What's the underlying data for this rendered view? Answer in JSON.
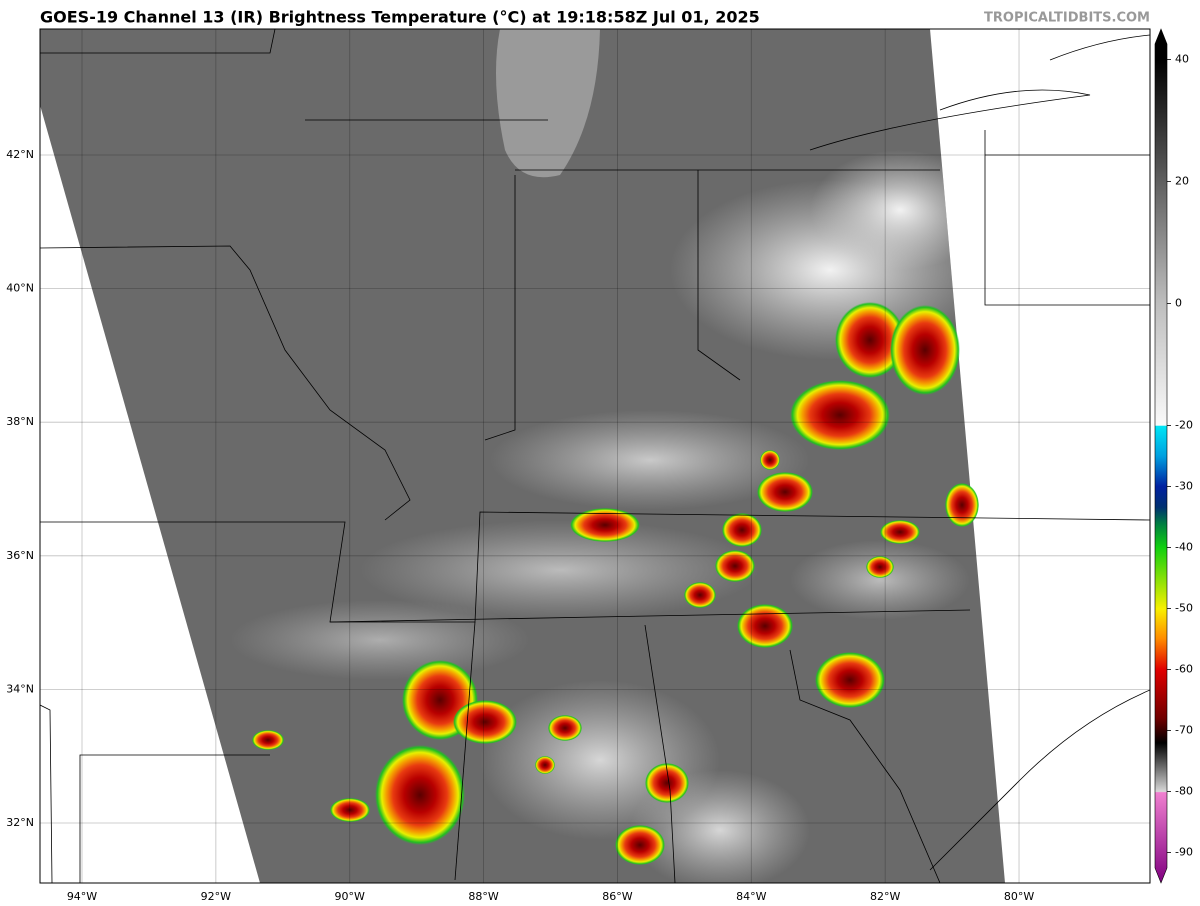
{
  "header": {
    "title": "GOES-19 Channel 13 (IR) Brightness Temperature (°C) at 19:18:58Z Jul 01, 2025",
    "watermark": "TROPICALTIDBITS.COM"
  },
  "map": {
    "lat_ticks": [
      {
        "value": 32,
        "label": "32°N"
      },
      {
        "value": 34,
        "label": "34°N"
      },
      {
        "value": 36,
        "label": "36°N"
      },
      {
        "value": 38,
        "label": "38°N"
      },
      {
        "value": 40,
        "label": "40°N"
      },
      {
        "value": 42,
        "label": "42°N"
      }
    ],
    "lon_ticks": [
      {
        "value": -94,
        "label": "94°W"
      },
      {
        "value": -92,
        "label": "92°W"
      },
      {
        "value": -90,
        "label": "90°W"
      },
      {
        "value": -88,
        "label": "88°W"
      },
      {
        "value": -86,
        "label": "86°W"
      },
      {
        "value": -84,
        "label": "84°W"
      },
      {
        "value": -82,
        "label": "82°W"
      },
      {
        "value": -80,
        "label": "80°W"
      }
    ]
  },
  "colorbar": {
    "range": [
      -95,
      45
    ],
    "ticks": [
      40,
      20,
      0,
      -20,
      -30,
      -40,
      -50,
      -60,
      -70,
      -80,
      -90
    ]
  }
}
